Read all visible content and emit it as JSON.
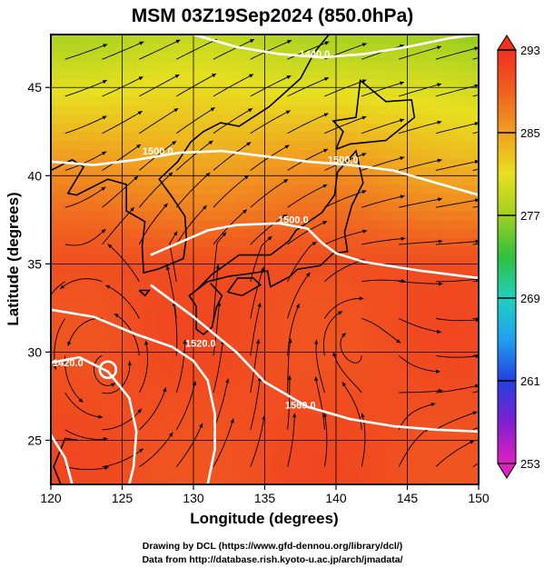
{
  "title": "MSM 03Z19Sep2024 (850.0hPa)",
  "credits": [
    "Drawing by DCL (https://www.gfd-dennou.org/library/dcl/)",
    "Data from http://database.rish.kyoto-u.ac.jp/arch/jmadata/"
  ],
  "chart_data": {
    "type": "heatmap",
    "title": "MSM 03Z19Sep2024 (850.0hPa)",
    "xlabel": "Longitude (degrees)",
    "ylabel": "Latitude  (degrees)",
    "xlim": [
      120,
      150
    ],
    "ylim": [
      22.5,
      48
    ],
    "x_ticks": [
      120,
      125,
      130,
      135,
      140,
      145,
      150
    ],
    "x_tick_labels": [
      "120",
      "125",
      "130",
      "135",
      "140",
      "145",
      "150"
    ],
    "y_ticks": [
      25,
      30,
      35,
      40,
      45
    ],
    "y_tick_labels": [
      "25",
      "30",
      "35",
      "40",
      "45"
    ],
    "grid": true,
    "colorbar": {
      "min": 253,
      "max": 293,
      "ticks": [
        293,
        285,
        277,
        269,
        261,
        253
      ],
      "colors": [
        "#e020c0",
        "#8020d0",
        "#2040e0",
        "#20a0f0",
        "#20d0c0",
        "#30c040",
        "#a0d020",
        "#e8e020",
        "#f0a020",
        "#f06020",
        "#f03020"
      ]
    },
    "contour_labels": [
      {
        "text": "1440.0",
        "lon": 138.5,
        "lat": 46.7
      },
      {
        "text": "1500.0",
        "lon": 127.5,
        "lat": 41.2
      },
      {
        "text": "1500.0",
        "lon": 140.5,
        "lat": 40.7
      },
      {
        "text": "1500.0",
        "lon": 137.0,
        "lat": 37.3
      },
      {
        "text": "1520.0",
        "lon": 130.5,
        "lat": 30.3
      },
      {
        "text": "1420.0",
        "lon": 121.2,
        "lat": 29.2
      },
      {
        "text": "1560.0",
        "lon": 137.5,
        "lat": 26.8
      }
    ],
    "contours": [
      [
        [
          130,
          48
        ],
        [
          133,
          47.3
        ],
        [
          136,
          46.9
        ],
        [
          139,
          46.7
        ],
        [
          142,
          46.9
        ],
        [
          145,
          47.3
        ],
        [
          148,
          47.8
        ],
        [
          150,
          48
        ]
      ],
      [
        [
          120,
          40.8
        ],
        [
          123,
          40.6
        ],
        [
          126,
          40.9
        ],
        [
          129,
          41.3
        ],
        [
          132,
          41.4
        ],
        [
          135,
          41.1
        ],
        [
          138,
          40.8
        ],
        [
          141,
          40.6
        ],
        [
          144,
          40.3
        ],
        [
          147,
          39.6
        ],
        [
          150,
          38.9
        ]
      ],
      [
        [
          127,
          35.5
        ],
        [
          129,
          36.2
        ],
        [
          131,
          36.9
        ],
        [
          133,
          37.2
        ],
        [
          136,
          37.3
        ],
        [
          138,
          37
        ],
        [
          139,
          36.2
        ],
        [
          140,
          35.6
        ],
        [
          142,
          35.1
        ],
        [
          146,
          34.6
        ],
        [
          150,
          34.2
        ]
      ],
      [
        [
          120,
          32.4
        ],
        [
          123,
          32
        ],
        [
          126,
          31
        ],
        [
          128.5,
          30.3
        ],
        [
          130,
          29.5
        ],
        [
          131,
          28.4
        ],
        [
          131.5,
          26.5
        ],
        [
          131.5,
          24.5
        ],
        [
          131,
          22.5
        ]
      ],
      [
        [
          120,
          29.4
        ],
        [
          122,
          29.7
        ],
        [
          124,
          28.9
        ],
        [
          125.5,
          27.4
        ],
        [
          126,
          25.5
        ],
        [
          125.8,
          23.5
        ],
        [
          125.5,
          22.5
        ]
      ],
      [
        [
          127,
          33.8
        ],
        [
          130,
          32
        ],
        [
          133,
          30
        ],
        [
          135,
          28.3
        ],
        [
          138,
          26.9
        ],
        [
          141,
          26.2
        ],
        [
          144,
          25.8
        ],
        [
          147,
          25.6
        ],
        [
          150,
          25.5
        ]
      ],
      [
        [
          120,
          25.3
        ],
        [
          121,
          24
        ],
        [
          121.5,
          22.5
        ]
      ]
    ],
    "low_center": {
      "lon": 124,
      "lat": 29
    }
  }
}
